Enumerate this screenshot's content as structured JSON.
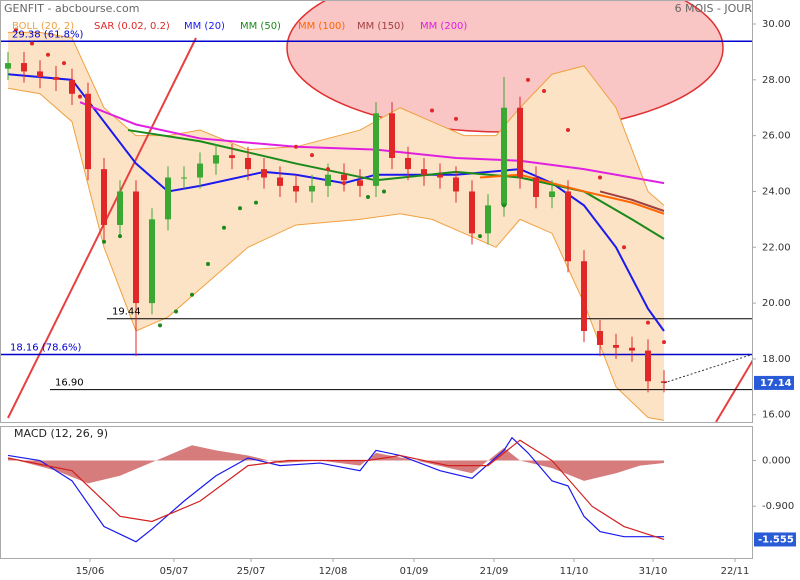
{
  "chart_data": [
    {
      "type": "candlestick",
      "title": "GENFIT - abcbourse.com",
      "subtitle": "6 MOIS - JOUR",
      "xlim": [
        0,
        188
      ],
      "ylim": [
        15.74,
        30.86
      ],
      "yticks": [
        {
          "value": 16,
          "label": "16.00"
        },
        {
          "value": 18,
          "label": "18.00"
        },
        {
          "value": 20,
          "label": "20.00"
        },
        {
          "value": 22,
          "label": "22.00"
        },
        {
          "value": 24,
          "label": "24.00"
        },
        {
          "value": 26,
          "label": "26.00"
        },
        {
          "value": 28,
          "label": "28.00"
        },
        {
          "value": 30,
          "label": "30.00"
        }
      ],
      "up_color": "#3aa832",
      "down_color": "#e02828",
      "candles": {
        "x": [
          2,
          6,
          10,
          14,
          18,
          22,
          26,
          30,
          34,
          38,
          42,
          46,
          50,
          54,
          58,
          62,
          66,
          70,
          74,
          78,
          82,
          86,
          90,
          94,
          98,
          102,
          106,
          110,
          114,
          118,
          122,
          126,
          130,
          134,
          138,
          142,
          146,
          150,
          154,
          158,
          162,
          166
        ],
        "open": [
          28.4,
          28.6,
          28.3,
          28.1,
          28.0,
          27.5,
          24.8,
          22.8,
          24.0,
          20.0,
          23.0,
          24.5,
          24.5,
          25.0,
          25.3,
          25.2,
          24.8,
          24.5,
          24.2,
          24.0,
          24.2,
          24.6,
          24.4,
          24.2,
          26.8,
          25.2,
          24.8,
          24.6,
          24.5,
          24.0,
          22.5,
          23.5,
          27.0,
          24.5,
          23.8,
          24.0,
          21.5,
          19.0,
          18.5,
          18.4,
          18.3,
          17.2
        ],
        "high": [
          29.0,
          29.0,
          28.7,
          28.5,
          28.4,
          27.9,
          25.2,
          24.4,
          24.4,
          23.4,
          24.9,
          24.9,
          25.4,
          25.7,
          25.7,
          25.6,
          25.2,
          24.9,
          24.6,
          24.6,
          25.0,
          25.0,
          24.8,
          27.2,
          27.2,
          25.6,
          25.2,
          25.0,
          24.9,
          24.4,
          23.9,
          28.1,
          27.4,
          24.9,
          24.4,
          24.4,
          21.9,
          19.4,
          18.9,
          18.8,
          18.7,
          17.6
        ],
        "low": [
          28.0,
          27.9,
          27.7,
          27.6,
          27.1,
          24.4,
          22.2,
          22.4,
          18.1,
          19.6,
          22.6,
          24.1,
          24.1,
          24.6,
          24.8,
          24.4,
          24.1,
          23.8,
          23.6,
          23.6,
          23.8,
          24.0,
          23.8,
          23.8,
          24.8,
          24.4,
          24.2,
          24.1,
          23.6,
          22.1,
          22.1,
          23.1,
          24.1,
          23.4,
          23.4,
          21.1,
          18.6,
          18.1,
          18.0,
          17.9,
          16.8,
          16.8
        ],
        "close": [
          28.6,
          28.3,
          28.1,
          28.0,
          27.5,
          24.8,
          22.8,
          24.0,
          20.0,
          23.0,
          24.5,
          24.5,
          25.0,
          25.3,
          25.2,
          24.8,
          24.5,
          24.2,
          24.0,
          24.2,
          24.6,
          24.4,
          24.2,
          26.8,
          25.2,
          24.8,
          24.6,
          24.5,
          24.0,
          22.5,
          23.5,
          27.0,
          24.5,
          23.8,
          24.0,
          21.5,
          19.0,
          18.5,
          18.4,
          18.3,
          17.2,
          17.14
        ]
      },
      "bands": {
        "name": "BOLL (20, 2)",
        "color": "#f0a040",
        "fill": "#fde3c6",
        "x": [
          2,
          10,
          18,
          26,
          34,
          42,
          50,
          62,
          74,
          90,
          100,
          108,
          116,
          124,
          130,
          138,
          146,
          154,
          162,
          166
        ],
        "upper": [
          29.7,
          29.7,
          29.5,
          27.0,
          26.0,
          26.0,
          26.2,
          25.5,
          25.6,
          26.2,
          27.0,
          26.5,
          26.0,
          26.0,
          27.0,
          28.2,
          28.5,
          27.0,
          24.0,
          23.5
        ],
        "lower": [
          27.7,
          27.5,
          26.5,
          22.0,
          19.0,
          19.5,
          20.5,
          22.0,
          22.8,
          23.0,
          23.2,
          23.0,
          22.5,
          22.0,
          23.0,
          22.5,
          20.0,
          17.0,
          15.9,
          15.8
        ]
      },
      "sar": {
        "name": "SAR (0.02, 0.2)",
        "color": "#e02828",
        "color_below": "#1a8a1a",
        "x": [
          4,
          8,
          12,
          16,
          20,
          26,
          30,
          40,
          44,
          48,
          52,
          56,
          60,
          64,
          74,
          78,
          82,
          86,
          92,
          96,
          108,
          114,
          120,
          126,
          132,
          136,
          142,
          150,
          156,
          162,
          166
        ],
        "values": [
          29.8,
          29.3,
          28.9,
          28.6,
          27.4,
          22.2,
          22.4,
          19.2,
          19.7,
          20.3,
          21.4,
          22.7,
          23.4,
          23.6,
          25.6,
          25.3,
          24.8,
          24.3,
          23.8,
          24.0,
          26.9,
          26.6,
          22.4,
          23.5,
          28.0,
          27.6,
          26.2,
          24.5,
          22.0,
          19.3,
          18.6
        ],
        "below": [
          false,
          false,
          false,
          false,
          false,
          true,
          true,
          true,
          true,
          true,
          true,
          true,
          true,
          true,
          false,
          false,
          false,
          false,
          true,
          true,
          false,
          false,
          true,
          true,
          false,
          false,
          false,
          false,
          false,
          false,
          false
        ]
      },
      "series": [
        {
          "name": "MM (20)",
          "color": "#1a1aee",
          "x": [
            2,
            18,
            26,
            34,
            42,
            50,
            66,
            74,
            86,
            94,
            106,
            114,
            130,
            138,
            146,
            154,
            162,
            166
          ],
          "values": [
            28.2,
            28.0,
            26.5,
            25.0,
            24.0,
            24.2,
            24.7,
            24.6,
            24.3,
            24.6,
            24.6,
            24.6,
            24.8,
            24.3,
            23.5,
            22.0,
            19.8,
            19.0
          ]
        },
        {
          "name": "MM (50)",
          "color": "#1a8a1a",
          "x": [
            32,
            50,
            74,
            94,
            114,
            130,
            146,
            158,
            166
          ],
          "values": [
            26.2,
            25.8,
            25.0,
            24.4,
            24.7,
            24.5,
            24.0,
            23.0,
            22.3
          ]
        },
        {
          "name": "MM (100)",
          "color": "#ff6600",
          "x": [
            120,
            130,
            146,
            158,
            166
          ],
          "values": [
            24.5,
            24.6,
            24.0,
            23.6,
            23.2
          ]
        },
        {
          "name": "MM (150)",
          "color": "#a04040",
          "x": [
            150,
            158,
            166
          ],
          "values": [
            24.0,
            23.7,
            23.3
          ]
        },
        {
          "name": "MM (200)",
          "color": "#e020e0",
          "x": [
            20,
            34,
            50,
            74,
            94,
            114,
            130,
            146,
            166
          ],
          "values": [
            27.2,
            26.4,
            25.9,
            25.6,
            25.5,
            25.2,
            25.1,
            24.8,
            24.3
          ]
        }
      ],
      "levels": [
        {
          "value": 29.38,
          "label": "29.38 (61.8%)",
          "color": "#0000cc"
        },
        {
          "value": 18.16,
          "label": "18.16 (78.6%)",
          "color": "#0000cc"
        },
        {
          "value": 19.44,
          "label": "19.44",
          "color": "#000000"
        },
        {
          "value": 16.9,
          "label": "16.90",
          "color": "#000000"
        }
      ],
      "last_price": 17.14
    },
    {
      "type": "line",
      "title": "MACD (12, 26, 9)",
      "xlim": [
        0,
        188
      ],
      "ylim": [
        -1.92,
        0.68
      ],
      "yticks": [
        {
          "value": 0,
          "label": "0.000"
        },
        {
          "value": -0.9,
          "label": "-0.900"
        }
      ],
      "xticks": [
        {
          "value": 22.5,
          "label": "15/06"
        },
        {
          "value": 43.5,
          "label": "05/07"
        },
        {
          "value": 62.75,
          "label": "25/07"
        },
        {
          "value": 83.25,
          "label": "12/08"
        },
        {
          "value": 103.5,
          "label": "01/09"
        },
        {
          "value": 123.5,
          "label": "21/09"
        },
        {
          "value": 143.5,
          "label": "11/10"
        },
        {
          "value": 163.25,
          "label": "31/10"
        },
        {
          "value": 183.75,
          "label": "22/11"
        }
      ],
      "histogram": {
        "color": "#c85050",
        "x": [
          2,
          14,
          22,
          30,
          36,
          42,
          48,
          54,
          62,
          70,
          80,
          90,
          94,
          104,
          118,
          126,
          130,
          138,
          146,
          154,
          160,
          166
        ],
        "values": [
          0.05,
          -0.2,
          -0.45,
          -0.3,
          -0.1,
          0.1,
          0.3,
          0.2,
          0.1,
          -0.05,
          0.0,
          -0.1,
          0.15,
          0.0,
          -0.25,
          0.25,
          0.0,
          -0.15,
          -0.4,
          -0.25,
          -0.1,
          -0.05
        ]
      },
      "series": [
        {
          "color": "#1a1aee",
          "x": [
            2,
            10,
            18,
            26,
            34,
            38,
            46,
            54,
            62,
            70,
            80,
            90,
            94,
            100,
            110,
            118,
            126,
            128,
            132,
            138,
            142,
            146,
            150,
            156,
            160,
            166
          ],
          "values": [
            0.1,
            0.0,
            -0.4,
            -1.3,
            -1.6,
            -1.35,
            -0.8,
            -0.3,
            0.05,
            -0.1,
            -0.05,
            -0.2,
            0.2,
            0.1,
            -0.2,
            -0.35,
            0.2,
            0.45,
            0.15,
            -0.4,
            -0.5,
            -1.1,
            -1.4,
            -1.5,
            -1.5,
            -1.5
          ]
        },
        {
          "color": "#d02020",
          "x": [
            2,
            18,
            30,
            38,
            50,
            62,
            72,
            92,
            100,
            112,
            122,
            130,
            138,
            148,
            156,
            166
          ],
          "values": [
            0.05,
            -0.2,
            -1.1,
            -1.2,
            -0.8,
            -0.1,
            0.0,
            0.0,
            0.1,
            -0.1,
            -0.1,
            0.4,
            0.0,
            -0.9,
            -1.3,
            -1.555
          ]
        }
      ],
      "last_value": -1.555
    }
  ]
}
